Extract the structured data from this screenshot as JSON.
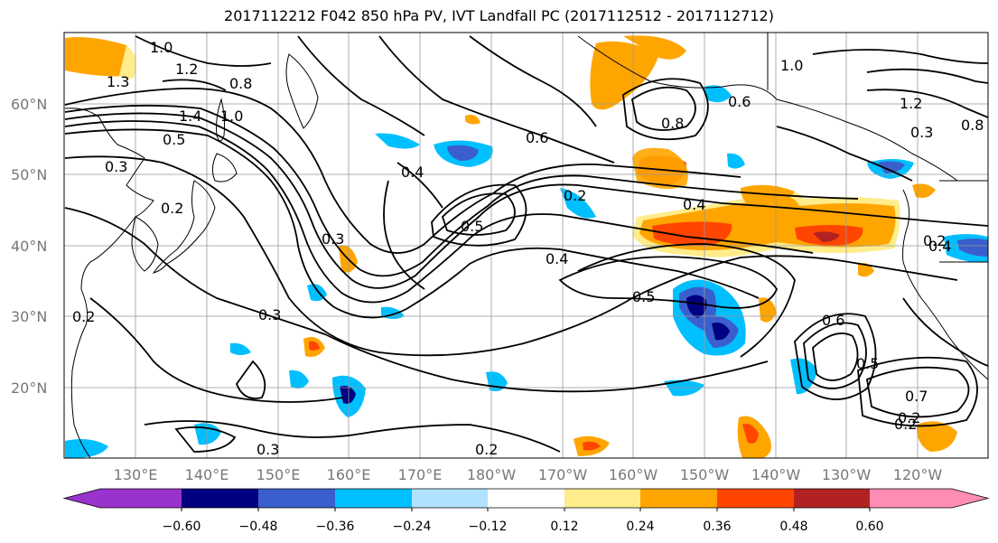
{
  "title": "2017112212 F042 850 hPa PV, IVT Landfall PC (2017112512 - 2017112712)",
  "map": {
    "lon_ticks": [
      "130°E",
      "140°E",
      "150°E",
      "160°E",
      "170°E",
      "180°W",
      "170°W",
      "160°W",
      "150°W",
      "140°W",
      "130°W",
      "120°W"
    ],
    "lat_ticks": [
      "60°N",
      "50°N",
      "40°N",
      "30°N",
      "20°N"
    ],
    "extent": {
      "lon_min": 120,
      "lon_max": 250,
      "lat_min": 10,
      "lat_max": 70
    },
    "contour_labels": [
      "1.0",
      "1.2",
      "1.3",
      "1.4",
      "1.0",
      "0.8",
      "0.5",
      "0.3",
      "0.2",
      "0.3",
      "0.2",
      "0.3",
      "0.3",
      "0.4",
      "0.2",
      "0.4",
      "0.4",
      "0.5",
      "0.5",
      "0.8",
      "0.6",
      "0.2",
      "0.4",
      "0.6",
      "0.5",
      "0.7",
      "0.2",
      "0.2",
      "1.0",
      "0.6",
      "0.8",
      "1.2",
      "0.3",
      "0.2"
    ]
  },
  "colorbar": {
    "ticks": [
      "−0.60",
      "−0.48",
      "−0.36",
      "−0.24",
      "−0.12",
      "0.12",
      "0.24",
      "0.36",
      "0.48",
      "0.60"
    ],
    "colors": [
      "#9a32cd",
      "#000080",
      "#3a5fcd",
      "#00bfff",
      "#b0e2ff",
      "#ffffff",
      "#ffec8b",
      "#ffa500",
      "#ff4500",
      "#b22222",
      "#ff8cb4"
    ]
  },
  "palette": {
    "dark_blue": "#000080",
    "mid_blue": "#3a5fcd",
    "light_blue": "#00bfff",
    "pale_blue": "#b0e2ff",
    "yellow": "#ffec8b",
    "orange": "#ffa500",
    "red_orange": "#ff4500",
    "dark_red": "#b22222"
  }
}
